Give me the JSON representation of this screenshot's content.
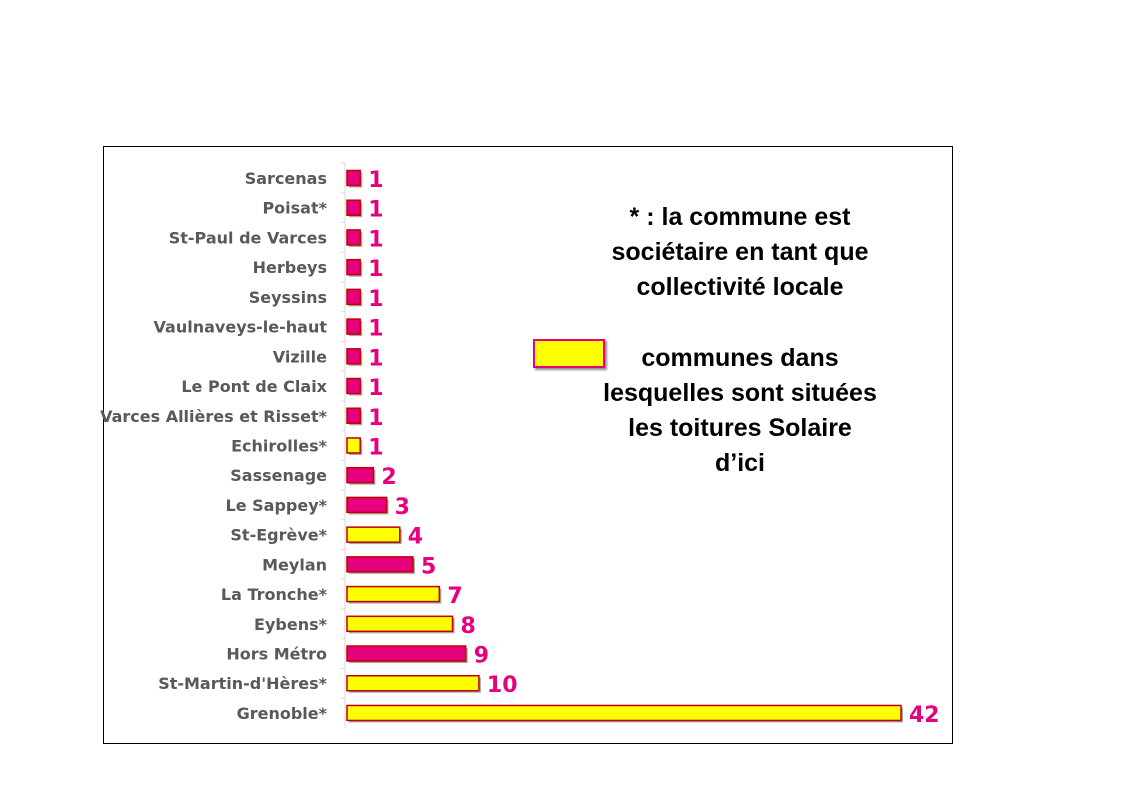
{
  "chart_data": {
    "type": "bar",
    "orientation": "horizontal",
    "categories": [
      "Sarcenas",
      "Poisat*",
      "St-Paul de Varces",
      "Herbeys",
      "Seyssins",
      "Vaulnaveys-le-haut",
      "Vizille",
      "Le Pont de Claix",
      "Varces Allières et Risset*",
      "Echirolles*",
      "Sassenage",
      "Le Sappey*",
      "St-Egrève*",
      "Meylan",
      "La Tronche*",
      "Eybens*",
      "Hors Métro",
      "St-Martin-d'Hères*",
      "Grenoble*"
    ],
    "values": [
      1,
      1,
      1,
      1,
      1,
      1,
      1,
      1,
      1,
      1,
      2,
      3,
      4,
      5,
      7,
      8,
      9,
      10,
      42
    ],
    "highlighted": [
      false,
      false,
      false,
      false,
      false,
      false,
      false,
      false,
      false,
      true,
      false,
      false,
      true,
      false,
      true,
      true,
      false,
      true,
      true
    ],
    "colors": {
      "default": "#e6007e",
      "highlighted": "#ffff00",
      "border": "#c00000",
      "value_label": "#e6007e"
    },
    "xlim": [
      0,
      42
    ],
    "grid": false,
    "notes": {
      "asterisk_lines": [
        "* : la commune est",
        "sociétaire en tant que",
        "collectivité locale"
      ],
      "legend_lines": [
        "communes dans",
        "lesquelles sont situées",
        "les toitures Solaire",
        "d’ici"
      ]
    }
  }
}
